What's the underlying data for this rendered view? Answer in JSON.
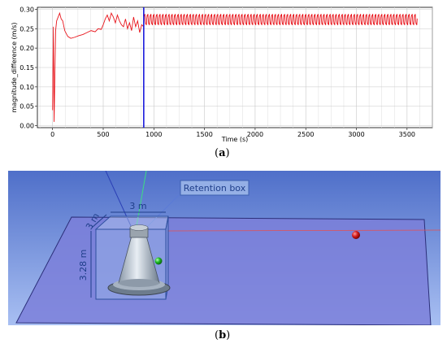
{
  "chart_data": {
    "type": "line",
    "xlabel": "Time (s)",
    "ylabel": "magnitude_difference (m/s)",
    "xlim": [
      -150,
      3750
    ],
    "ylim": [
      -0.005,
      0.305
    ],
    "xticks": [
      0,
      500,
      1000,
      1500,
      2000,
      2500,
      3000,
      3500
    ],
    "yticks": [
      0.0,
      0.05,
      0.1,
      0.15,
      0.2,
      0.25,
      0.3
    ],
    "ytick_labels": [
      "0.00",
      "0.05",
      "0.10",
      "0.15",
      "0.20",
      "0.25",
      "0.30"
    ],
    "grid": true,
    "line_color": "#e8141b",
    "vline": {
      "x": 900,
      "color": "#1a1adc"
    },
    "series": [
      {
        "name": "",
        "x": [
          0,
          8,
          15,
          22,
          30,
          40,
          55,
          70,
          85,
          100,
          120,
          150,
          180,
          220,
          260,
          300,
          340,
          380,
          420,
          450,
          480,
          500,
          520,
          540,
          560,
          580,
          600,
          620,
          640,
          660,
          680,
          700,
          720,
          740,
          760,
          780,
          800,
          820,
          840,
          860,
          880,
          900
        ],
        "y": [
          0.04,
          0.255,
          0.01,
          0.12,
          0.245,
          0.27,
          0.28,
          0.29,
          0.275,
          0.27,
          0.245,
          0.23,
          0.225,
          0.228,
          0.232,
          0.235,
          0.24,
          0.245,
          0.242,
          0.25,
          0.248,
          0.26,
          0.275,
          0.285,
          0.27,
          0.29,
          0.28,
          0.265,
          0.285,
          0.27,
          0.26,
          0.255,
          0.275,
          0.25,
          0.265,
          0.245,
          0.28,
          0.255,
          0.27,
          0.24,
          0.26,
          0.255
        ]
      },
      {
        "name": "",
        "oscillation": {
          "x_start": 900,
          "x_end": 3600,
          "period_s": 30,
          "y_min": 0.255,
          "y_max": 0.292
        }
      }
    ]
  },
  "panel_labels": {
    "a": "a",
    "b": "b",
    "open": "(",
    "close": ")"
  },
  "scene": {
    "annotation": "Retention box",
    "dim_width": "3 m",
    "dim_depth": "3 m",
    "dim_height": "3.28 m"
  }
}
